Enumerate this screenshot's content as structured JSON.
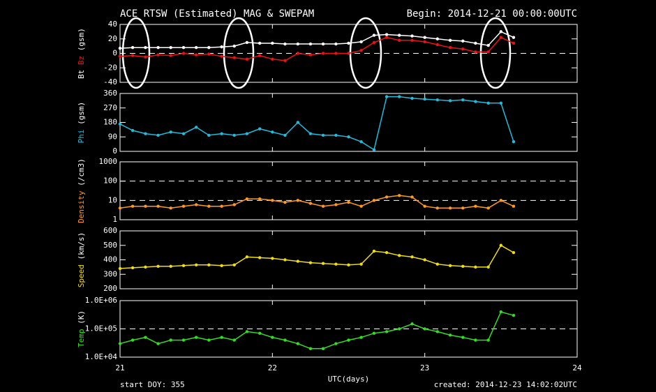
{
  "page": {
    "title": "ACE RTSW (Estimated) MAG & SWEPAM",
    "begin": "Begin: 2014-12-21 00:00:00UTC",
    "start": "start DOY: 355",
    "created": "created: 2014-12-23 14:02:02UTC"
  },
  "chart_data": [
    {
      "type": "scatter",
      "ylabel": "(gsm)",
      "xlim": [
        21,
        24
      ],
      "ylim": [
        -40,
        40
      ],
      "yticks": [
        -40,
        -20,
        0,
        20,
        40
      ],
      "hlines": [
        0
      ],
      "log": false,
      "x": [
        21.0,
        21.083,
        21.167,
        21.25,
        21.333,
        21.417,
        21.5,
        21.583,
        21.667,
        21.75,
        21.833,
        21.917,
        22.0,
        22.083,
        22.167,
        22.25,
        22.333,
        22.417,
        22.5,
        22.583,
        22.667,
        22.75,
        22.833,
        22.917,
        23.0,
        23.083,
        23.167,
        23.25,
        23.333,
        23.417,
        23.5,
        23.583
      ],
      "series": [
        {
          "name": "Bt",
          "color": "#ffffff",
          "values": [
            7,
            8,
            8,
            8,
            8,
            8,
            8,
            8,
            9,
            10,
            15,
            14,
            14,
            13,
            13,
            13,
            13,
            13,
            14,
            16,
            25,
            26,
            25,
            24,
            22,
            20,
            18,
            17,
            14,
            11,
            30,
            22
          ]
        },
        {
          "name": "Bz",
          "color": "#ee1111",
          "values": [
            -4,
            -3,
            -5,
            -2,
            -3,
            0,
            -2,
            -1,
            -4,
            -6,
            -8,
            -3,
            -8,
            -10,
            0,
            -2,
            0,
            0,
            0,
            4,
            15,
            22,
            18,
            18,
            16,
            12,
            8,
            6,
            2,
            2,
            22,
            14
          ]
        }
      ]
    },
    {
      "type": "scatter",
      "ylabel": "(gsm)",
      "xlim": [
        21,
        24
      ],
      "ylim": [
        0,
        360
      ],
      "yticks": [
        0,
        90,
        180,
        270,
        360
      ],
      "hlines": [],
      "log": false,
      "x": [
        21.0,
        21.083,
        21.167,
        21.25,
        21.333,
        21.417,
        21.5,
        21.583,
        21.667,
        21.75,
        21.833,
        21.917,
        22.0,
        22.083,
        22.167,
        22.25,
        22.333,
        22.417,
        22.5,
        22.583,
        22.667,
        22.75,
        22.833,
        22.917,
        23.0,
        23.083,
        23.167,
        23.25,
        23.333,
        23.417,
        23.5,
        23.583
      ],
      "series": [
        {
          "name": "Phi",
          "color": "#22bbdd",
          "values": [
            170,
            130,
            110,
            100,
            120,
            110,
            150,
            100,
            110,
            100,
            110,
            140,
            120,
            100,
            180,
            110,
            100,
            100,
            90,
            60,
            10,
            340,
            340,
            330,
            325,
            320,
            315,
            320,
            310,
            300,
            300,
            60
          ]
        }
      ]
    },
    {
      "type": "scatter",
      "ylabel": "(/cm3)",
      "xlim": [
        21,
        24
      ],
      "ylim": [
        1,
        1000
      ],
      "yticks": [
        1,
        10,
        100,
        1000
      ],
      "hlines": [
        10,
        100
      ],
      "log": true,
      "x": [
        21.0,
        21.083,
        21.167,
        21.25,
        21.333,
        21.417,
        21.5,
        21.583,
        21.667,
        21.75,
        21.833,
        21.917,
        22.0,
        22.083,
        22.167,
        22.25,
        22.333,
        22.417,
        22.5,
        22.583,
        22.667,
        22.75,
        22.833,
        22.917,
        23.0,
        23.083,
        23.167,
        23.25,
        23.333,
        23.417,
        23.5,
        23.583
      ],
      "series": [
        {
          "name": "Density",
          "color": "#ff9922",
          "values": [
            4,
            5,
            5,
            5,
            4,
            5,
            6,
            5,
            5,
            6,
            12,
            12,
            10,
            8,
            10,
            7,
            5,
            6,
            8,
            5,
            10,
            15,
            18,
            15,
            5,
            4,
            4,
            4,
            5,
            4,
            10,
            5
          ]
        }
      ]
    },
    {
      "type": "scatter",
      "ylabel": "(km/s)",
      "xlim": [
        21,
        24
      ],
      "ylim": [
        200,
        600
      ],
      "yticks": [
        200,
        300,
        400,
        500,
        600
      ],
      "hlines": [],
      "log": false,
      "x": [
        21.0,
        21.083,
        21.167,
        21.25,
        21.333,
        21.417,
        21.5,
        21.583,
        21.667,
        21.75,
        21.833,
        21.917,
        22.0,
        22.083,
        22.167,
        22.25,
        22.333,
        22.417,
        22.5,
        22.583,
        22.667,
        22.75,
        22.833,
        22.917,
        23.0,
        23.083,
        23.167,
        23.25,
        23.333,
        23.417,
        23.5,
        23.583
      ],
      "series": [
        {
          "name": "Speed",
          "color": "#eedd11",
          "values": [
            340,
            345,
            350,
            355,
            355,
            360,
            365,
            365,
            360,
            365,
            420,
            415,
            410,
            400,
            390,
            380,
            375,
            370,
            365,
            370,
            460,
            450,
            430,
            420,
            400,
            370,
            360,
            355,
            350,
            350,
            500,
            450
          ]
        }
      ]
    },
    {
      "type": "scatter",
      "ylabel": "(K)",
      "xlabel": "UTC(days)",
      "xlim": [
        21,
        24
      ],
      "xticks": [
        21,
        22,
        23,
        24
      ],
      "ylim": [
        10000,
        1000000
      ],
      "yticks": [
        {
          "value": 10000,
          "label": "1.0E+04"
        },
        {
          "value": 100000,
          "label": "1.0E+05"
        },
        {
          "value": 1000000,
          "label": "1.0E+06"
        }
      ],
      "hlines": [
        100000
      ],
      "log": true,
      "x": [
        21.0,
        21.083,
        21.167,
        21.25,
        21.333,
        21.417,
        21.5,
        21.583,
        21.667,
        21.75,
        21.833,
        21.917,
        22.0,
        22.083,
        22.167,
        22.25,
        22.333,
        22.417,
        22.5,
        22.583,
        22.667,
        22.75,
        22.833,
        22.917,
        23.0,
        23.083,
        23.167,
        23.25,
        23.333,
        23.417,
        23.5,
        23.583
      ],
      "series": [
        {
          "name": "Temp",
          "color": "#33dd22",
          "values": [
            30000,
            40000,
            50000,
            30000,
            40000,
            40000,
            50000,
            40000,
            50000,
            40000,
            80000,
            70000,
            50000,
            40000,
            30000,
            20000,
            20000,
            30000,
            40000,
            50000,
            70000,
            80000,
            100000,
            150000,
            100000,
            80000,
            60000,
            50000,
            40000,
            40000,
            400000,
            300000
          ]
        }
      ]
    }
  ]
}
